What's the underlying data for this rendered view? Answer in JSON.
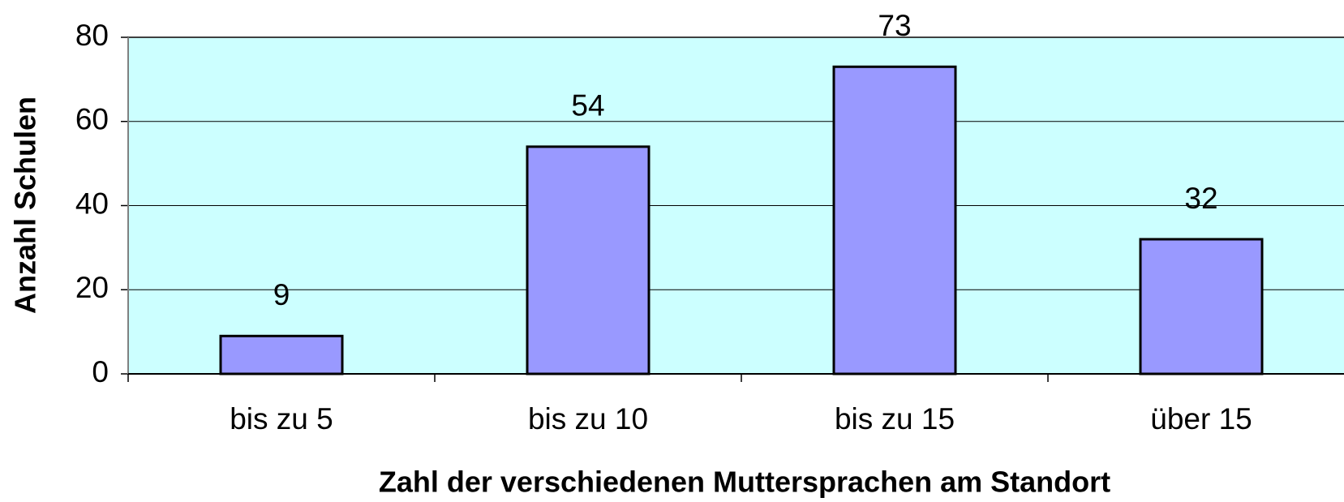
{
  "chart_data": {
    "type": "bar",
    "x_label": "Zahl der verschiedenen Muttersprachen am Standort",
    "y_label": "Anzahl Schulen",
    "categories": [
      "bis zu 5",
      "bis zu 10",
      "bis zu 15",
      "über 15"
    ],
    "values": [
      9,
      54,
      73,
      32
    ],
    "color": "#9999ff",
    "background": "#ccffff",
    "ylim": [
      0,
      80
    ],
    "yticks": [
      0,
      20,
      40,
      60,
      80
    ],
    "grid": true
  }
}
